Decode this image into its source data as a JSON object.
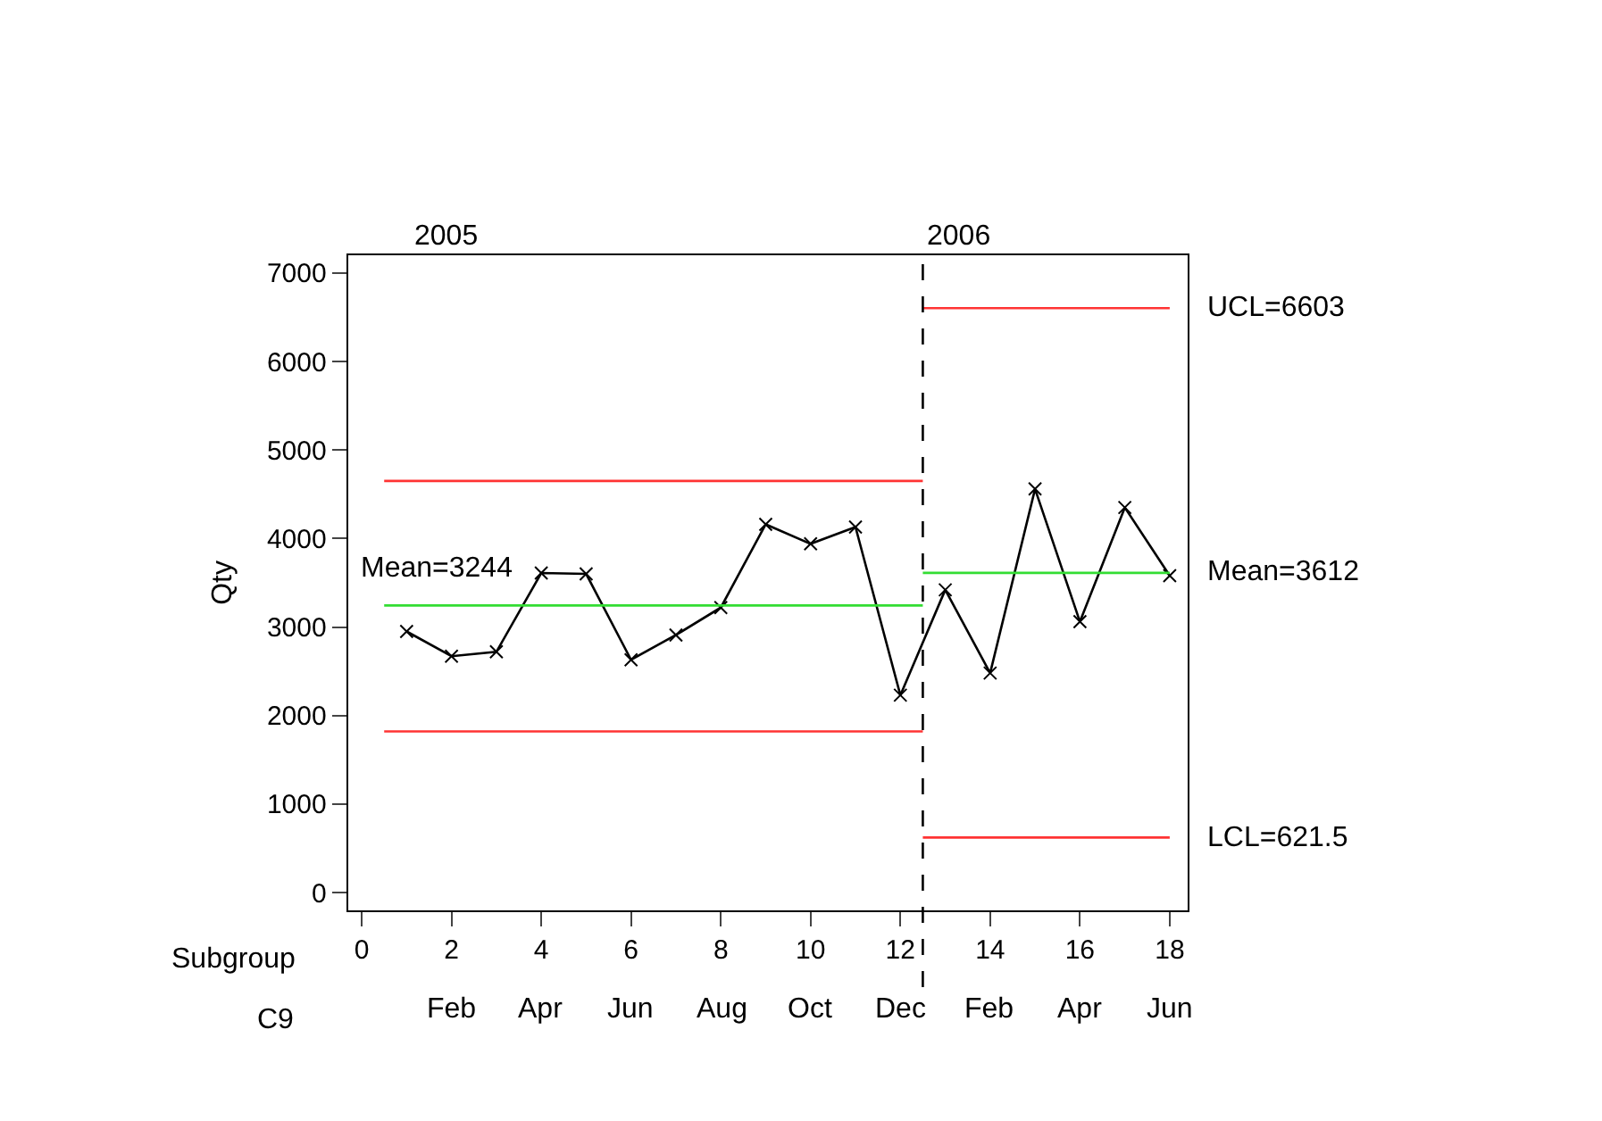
{
  "chart_data": {
    "type": "line",
    "ylabel": "Qty",
    "xlim": [
      -0.3,
      18.4
    ],
    "ylim": [
      -200,
      7200
    ],
    "xticks": [
      0,
      2,
      4,
      6,
      8,
      10,
      12,
      14,
      16,
      18
    ],
    "yticks": [
      0,
      1000,
      2000,
      3000,
      4000,
      5000,
      6000,
      7000
    ],
    "marker": "cross",
    "series": [
      {
        "color": "#000000",
        "x": [
          1,
          2,
          3,
          4,
          5,
          6,
          7,
          8,
          9,
          10,
          11,
          12,
          13,
          14,
          15,
          16,
          17,
          18
        ],
        "values": [
          2950,
          2670,
          2720,
          3610,
          3600,
          2630,
          2910,
          3220,
          4160,
          3940,
          4130,
          2230,
          3420,
          2480,
          4560,
          3060,
          4350,
          3580
        ]
      },
      {
        "color": "#ff3333",
        "marker": "none",
        "x": [
          0.5,
          12.5
        ],
        "values": [
          4650,
          4650
        ]
      },
      {
        "color": "#ff3333",
        "marker": "none",
        "x": [
          0.5,
          12.5
        ],
        "values": [
          1820,
          1820
        ]
      },
      {
        "color": "#33dd33",
        "marker": "none",
        "x": [
          0.5,
          12.5
        ],
        "values": [
          3244,
          3244
        ]
      },
      {
        "color": "#ff3333",
        "marker": "none",
        "x": [
          12.5,
          18
        ],
        "values": [
          6603,
          6603
        ]
      },
      {
        "color": "#ff3333",
        "marker": "none",
        "x": [
          12.5,
          18
        ],
        "values": [
          621.5,
          621.5
        ]
      },
      {
        "color": "#33dd33",
        "marker": "none",
        "x": [
          12.5,
          18
        ],
        "values": [
          3612,
          3612
        ]
      }
    ],
    "ref_lines": [
      {
        "axis": "x",
        "value": 12.5,
        "color": "#000000",
        "line_style": "dashed"
      }
    ],
    "annotations": [
      {
        "text": "Mean=3244",
        "y": 3244
      },
      "2005",
      "2006",
      "UCL=6603",
      "Mean=3612",
      "LCL=621.5",
      "Subgroup",
      "C9",
      "Feb",
      "Apr",
      "Jun",
      "Aug",
      "Oct",
      "Dec",
      "Feb",
      "Apr",
      "Jun"
    ]
  }
}
